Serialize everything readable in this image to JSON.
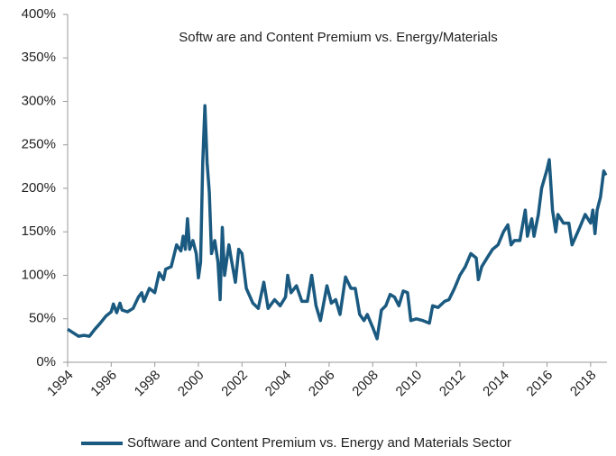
{
  "chart_data": {
    "type": "line",
    "title": "Softw are and Content Premium  vs. Energy/Materials",
    "x": [
      1994.0,
      1994.25,
      1994.5,
      1994.75,
      1995.0,
      1995.25,
      1995.5,
      1995.75,
      1996.0,
      1996.1,
      1996.25,
      1996.4,
      1996.5,
      1996.75,
      1997.0,
      1997.25,
      1997.4,
      1997.5,
      1997.75,
      1998.0,
      1998.2,
      1998.4,
      1998.5,
      1998.75,
      1999.0,
      1999.2,
      1999.3,
      1999.4,
      1999.5,
      1999.6,
      1999.75,
      1999.9,
      2000.0,
      2000.1,
      2000.2,
      2000.3,
      2000.4,
      2000.5,
      2000.6,
      2000.75,
      2000.9,
      2001.0,
      2001.1,
      2001.2,
      2001.4,
      2001.5,
      2001.7,
      2001.85,
      2002.0,
      2002.2,
      2002.5,
      2002.75,
      2003.0,
      2003.2,
      2003.5,
      2003.75,
      2004.0,
      2004.1,
      2004.25,
      2004.5,
      2004.75,
      2005.0,
      2005.2,
      2005.4,
      2005.6,
      2005.75,
      2005.9,
      2006.1,
      2006.3,
      2006.5,
      2006.75,
      2007.0,
      2007.2,
      2007.4,
      2007.6,
      2007.75,
      2008.0,
      2008.2,
      2008.4,
      2008.6,
      2008.8,
      2009.0,
      2009.2,
      2009.4,
      2009.6,
      2009.75,
      2010.0,
      2010.3,
      2010.6,
      2010.75,
      2011.0,
      2011.3,
      2011.5,
      2011.75,
      2012.0,
      2012.25,
      2012.5,
      2012.75,
      2012.85,
      2013.0,
      2013.25,
      2013.5,
      2013.75,
      2014.0,
      2014.2,
      2014.35,
      2014.5,
      2014.75,
      2015.0,
      2015.1,
      2015.3,
      2015.4,
      2015.6,
      2015.75,
      2016.0,
      2016.1,
      2016.25,
      2016.4,
      2016.5,
      2016.75,
      2017.0,
      2017.15,
      2017.5,
      2017.75,
      2018.0,
      2018.1,
      2018.2,
      2018.3,
      2018.45,
      2018.6,
      2018.7
    ],
    "series": [
      {
        "name": "Software and Content Premium vs. Energy and Materials Sector",
        "color": "#1b5a80",
        "values": [
          38,
          34,
          30,
          31,
          30,
          38,
          45,
          53,
          58,
          67,
          57,
          68,
          60,
          58,
          62,
          75,
          80,
          70,
          85,
          80,
          103,
          95,
          107,
          110,
          135,
          128,
          145,
          130,
          165,
          130,
          140,
          125,
          97,
          115,
          230,
          295,
          230,
          195,
          125,
          140,
          115,
          72,
          155,
          100,
          135,
          120,
          92,
          130,
          125,
          85,
          68,
          62,
          92,
          62,
          72,
          65,
          75,
          100,
          80,
          88,
          70,
          70,
          100,
          65,
          48,
          68,
          88,
          68,
          72,
          55,
          98,
          85,
          85,
          55,
          48,
          55,
          40,
          27,
          60,
          65,
          78,
          75,
          65,
          82,
          80,
          48,
          50,
          48,
          45,
          65,
          63,
          70,
          72,
          85,
          100,
          110,
          125,
          120,
          95,
          110,
          120,
          130,
          135,
          150,
          158,
          135,
          140,
          140,
          175,
          145,
          165,
          145,
          170,
          200,
          222,
          233,
          175,
          150,
          170,
          160,
          160,
          135,
          155,
          170,
          160,
          175,
          148,
          175,
          190,
          220,
          215
        ]
      }
    ],
    "xlim": [
      1994,
      2018.75
    ],
    "xticks": [
      1994,
      1996,
      1998,
      2000,
      2002,
      2004,
      2006,
      2008,
      2010,
      2012,
      2014,
      2016,
      2018
    ],
    "ylim": [
      0,
      400
    ],
    "yticks": [
      {
        "value": 0,
        "label": "0%"
      },
      {
        "value": 50,
        "label": "50%"
      },
      {
        "value": 100,
        "label": "100%"
      },
      {
        "value": 150,
        "label": "150%"
      },
      {
        "value": 200,
        "label": "200%"
      },
      {
        "value": 250,
        "label": "250%"
      },
      {
        "value": 300,
        "label": "300%"
      },
      {
        "value": 350,
        "label": "350%"
      },
      {
        "value": 400,
        "label": "400%"
      }
    ],
    "grid": false,
    "legend": "bottom"
  }
}
